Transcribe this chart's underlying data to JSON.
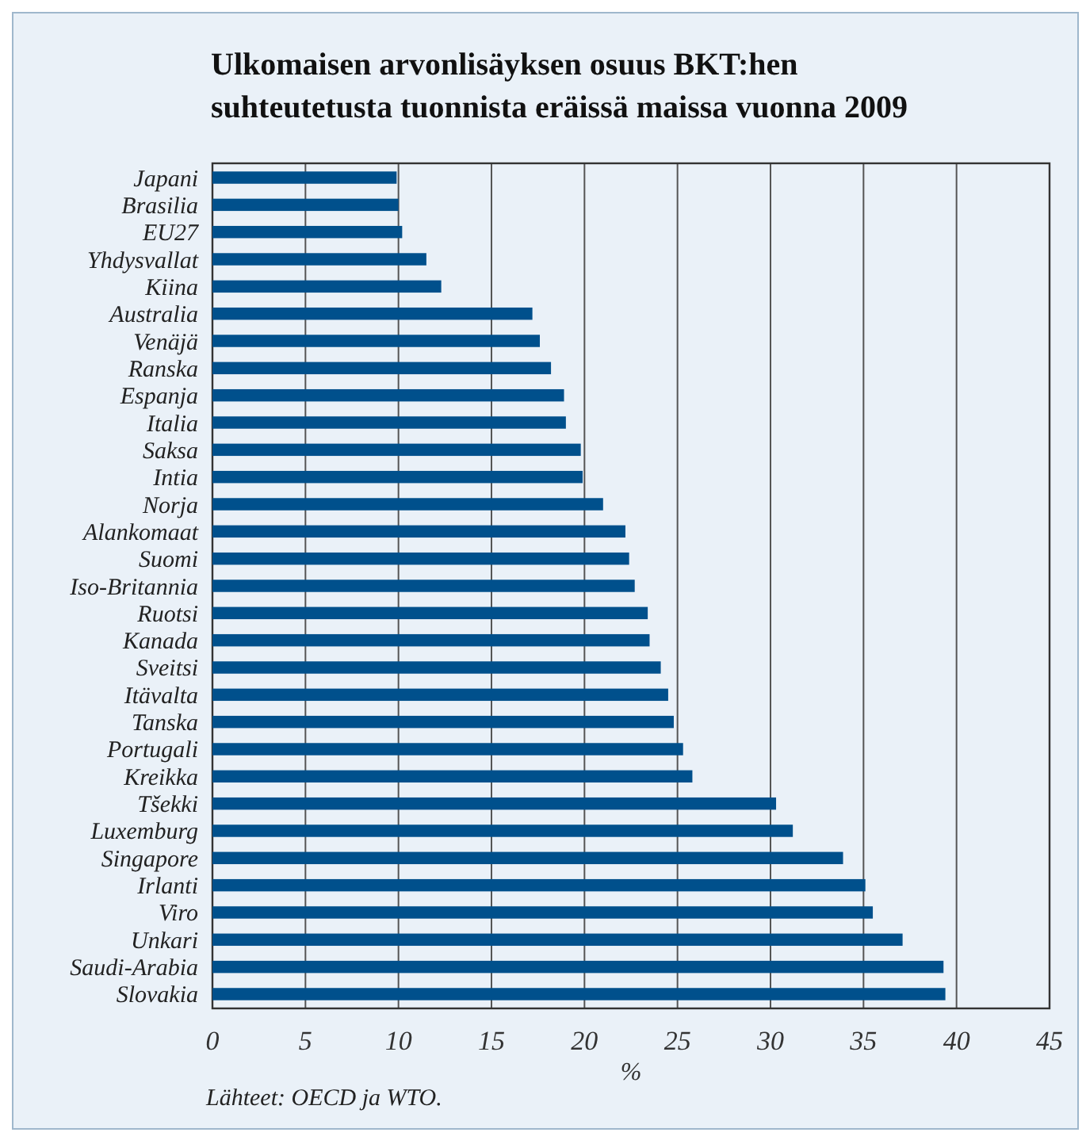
{
  "chart_data": {
    "type": "bar",
    "orientation": "horizontal",
    "title": "Ulkomaisen arvonlisäyksen osuus BKT:hen suhteutetusta tuonnista eräissä maissa vuonna 2009",
    "categories": [
      "Japani",
      "Brasilia",
      "EU27",
      "Yhdysvallat",
      "Kiina",
      "Australia",
      "Venäjä",
      "Ranska",
      "Espanja",
      "Italia",
      "Saksa",
      "Intia",
      "Norja",
      "Alankomaat",
      "Suomi",
      "Iso-Britannia",
      "Ruotsi",
      "Kanada",
      "Sveitsi",
      "Itävalta",
      "Tanska",
      "Portugali",
      "Kreikka",
      "Tšekki",
      "Luxemburg",
      "Singapore",
      "Irlanti",
      "Viro",
      "Unkari",
      "Saudi-Arabia",
      "Slovakia"
    ],
    "values": [
      9.9,
      10.0,
      10.2,
      11.5,
      12.3,
      17.2,
      17.6,
      18.2,
      18.9,
      19.0,
      19.8,
      19.9,
      21.0,
      22.2,
      22.4,
      22.7,
      23.4,
      23.5,
      24.1,
      24.5,
      24.8,
      25.3,
      25.8,
      30.3,
      31.2,
      33.9,
      35.1,
      35.5,
      37.1,
      39.3,
      39.4
    ],
    "color": "#00508c",
    "xlim": [
      0,
      45
    ],
    "xticks": [
      0,
      5,
      10,
      15,
      20,
      25,
      30,
      35,
      40,
      45
    ],
    "xlabel": "%",
    "grid": "x",
    "annotations": [
      "Lähteet: OECD ja WTO."
    ]
  }
}
